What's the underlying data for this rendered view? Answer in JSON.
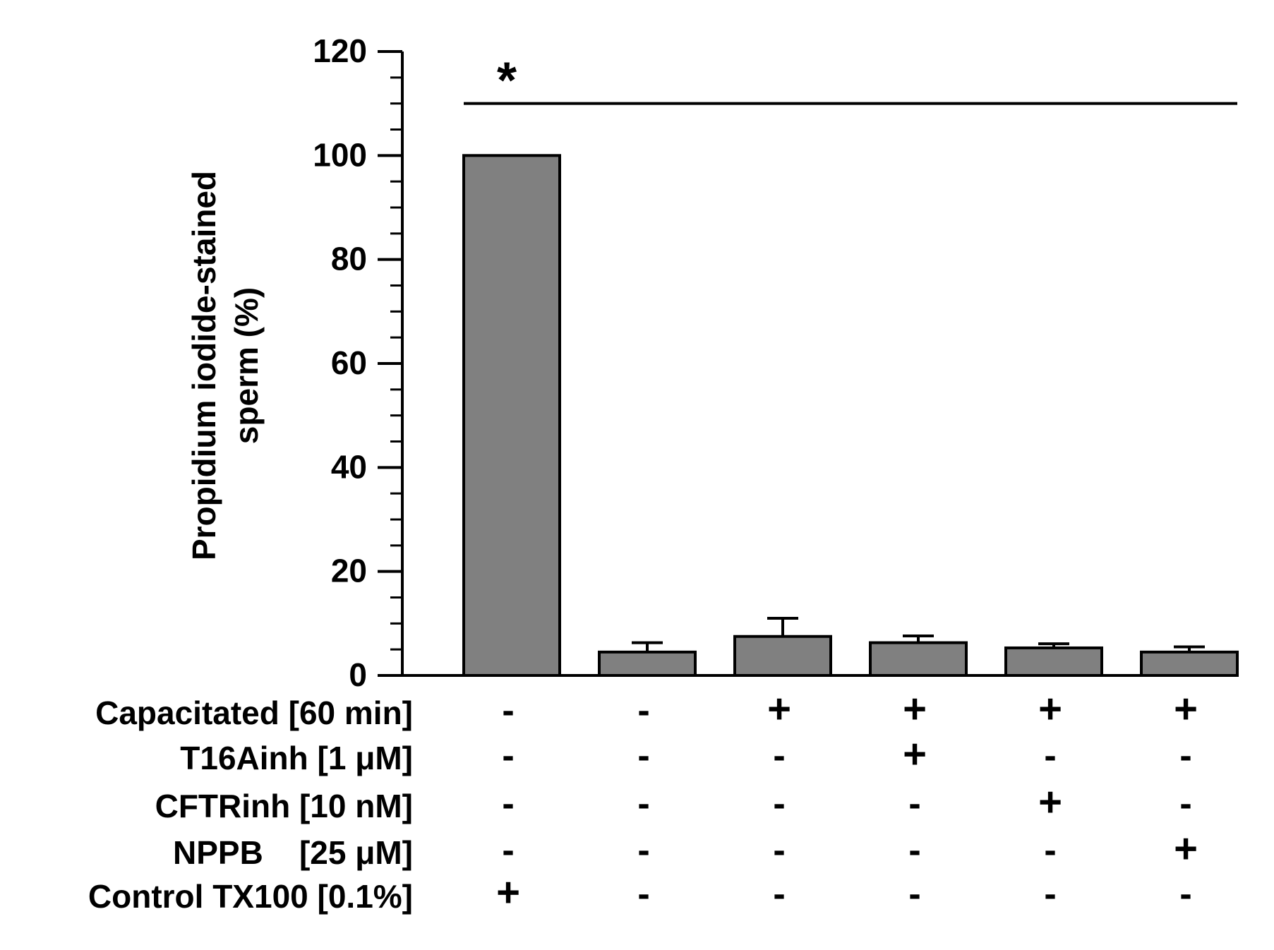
{
  "chart_data": {
    "type": "bar",
    "ylabel": "Propidium iodide-stained sperm (%)",
    "ylabel_lines": [
      "Propidium iodide-stained",
      "sperm (%)"
    ],
    "ylim": [
      0,
      120
    ],
    "yticks": [
      0,
      20,
      40,
      60,
      80,
      100,
      120
    ],
    "y_minor_step": 5,
    "grid": false,
    "bar_color": "#808080",
    "values": [
      100,
      4.5,
      7.5,
      6.3,
      5.3,
      4.5
    ],
    "errors": [
      0,
      1.8,
      3.5,
      1.3,
      0.8,
      1.0
    ],
    "significance": {
      "symbol": "*",
      "y": 110
    },
    "conditions": [
      {
        "label": "Capacitated [60 min]",
        "marks": [
          "-",
          "-",
          "+",
          "+",
          "+",
          "+"
        ]
      },
      {
        "label": "T16Ainh [1 μM]",
        "marks": [
          "-",
          "-",
          "-",
          "+",
          "-",
          "-"
        ]
      },
      {
        "label": "CFTRinh [10 nM]",
        "marks": [
          "-",
          "-",
          "-",
          "-",
          "+",
          "-"
        ]
      },
      {
        "label": "NPPB    [25 μM]",
        "marks": [
          "-",
          "-",
          "-",
          "-",
          "-",
          "+"
        ]
      },
      {
        "label": "Control TX100 [0.1%]",
        "marks": [
          "+",
          "-",
          "-",
          "-",
          "-",
          "-"
        ]
      }
    ]
  }
}
